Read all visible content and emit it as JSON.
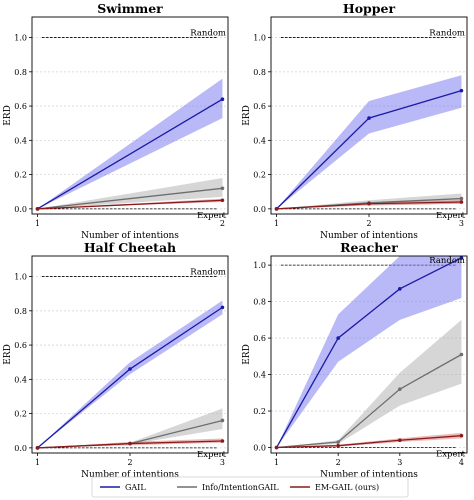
{
  "chart_data": [
    {
      "type": "line",
      "title": "Swimmer",
      "xlabel": "Number of intentions",
      "ylabel": "ERD",
      "xlim": [
        0.97,
        2.03
      ],
      "ylim": [
        -0.03,
        1.12
      ],
      "x": [
        1,
        2
      ],
      "xticks": [
        "1",
        "2"
      ],
      "yticks": [
        "0.0",
        "0.2",
        "0.4",
        "0.6",
        "0.8",
        "1.0"
      ],
      "grid": "y",
      "reference_lines": [
        {
          "label": "Random",
          "y": 1.0
        },
        {
          "label": "Expert",
          "y": 0.0
        }
      ],
      "series": [
        {
          "key": "gail",
          "values": [
            0.0,
            0.64
          ],
          "lower": [
            0.0,
            0.53
          ],
          "upper": [
            0.0,
            0.76
          ]
        },
        {
          "key": "info",
          "values": [
            0.0,
            0.12
          ],
          "lower": [
            0.0,
            0.07
          ],
          "upper": [
            0.0,
            0.18
          ]
        },
        {
          "key": "em",
          "values": [
            0.0,
            0.05
          ],
          "lower": [
            0.0,
            0.04
          ],
          "upper": [
            0.0,
            0.06
          ]
        }
      ]
    },
    {
      "type": "line",
      "title": "Hopper",
      "xlabel": "Number of intentions",
      "ylabel": "ERD",
      "xlim": [
        0.94,
        3.06
      ],
      "ylim": [
        -0.03,
        1.12
      ],
      "x": [
        1,
        2,
        3
      ],
      "xticks": [
        "1",
        "2",
        "3"
      ],
      "yticks": [
        "0.0",
        "0.2",
        "0.4",
        "0.6",
        "0.8",
        "1.0"
      ],
      "grid": "y",
      "reference_lines": [
        {
          "label": "Random",
          "y": 1.0
        },
        {
          "label": "Expert",
          "y": 0.0
        }
      ],
      "series": [
        {
          "key": "gail",
          "values": [
            0.0,
            0.53,
            0.69
          ],
          "lower": [
            0.0,
            0.44,
            0.59
          ],
          "upper": [
            0.0,
            0.63,
            0.78
          ]
        },
        {
          "key": "info",
          "values": [
            0.0,
            0.035,
            0.06
          ],
          "lower": [
            0.0,
            0.02,
            0.03
          ],
          "upper": [
            0.0,
            0.05,
            0.09
          ]
        },
        {
          "key": "em",
          "values": [
            0.0,
            0.03,
            0.04
          ],
          "lower": [
            0.0,
            0.02,
            0.03
          ],
          "upper": [
            0.0,
            0.04,
            0.05
          ]
        }
      ]
    },
    {
      "type": "line",
      "title": "Half Cheetah",
      "xlabel": "Number of intentions",
      "ylabel": "ERD",
      "xlim": [
        0.94,
        3.06
      ],
      "ylim": [
        -0.03,
        1.12
      ],
      "x": [
        1,
        2,
        3
      ],
      "xticks": [
        "1",
        "2",
        "3"
      ],
      "yticks": [
        "0.0",
        "0.2",
        "0.4",
        "0.6",
        "0.8",
        "1.0"
      ],
      "grid": "y",
      "reference_lines": [
        {
          "label": "Random",
          "y": 1.0
        },
        {
          "label": "Expert",
          "y": 0.0
        }
      ],
      "series": [
        {
          "key": "gail",
          "values": [
            0.0,
            0.46,
            0.82
          ],
          "lower": [
            0.0,
            0.43,
            0.78
          ],
          "upper": [
            0.0,
            0.5,
            0.86
          ]
        },
        {
          "key": "info",
          "values": [
            0.0,
            0.025,
            0.16
          ],
          "lower": [
            0.0,
            0.02,
            0.11
          ],
          "upper": [
            0.0,
            0.03,
            0.23
          ]
        },
        {
          "key": "em",
          "values": [
            0.0,
            0.025,
            0.04
          ],
          "lower": [
            0.0,
            0.015,
            0.03
          ],
          "upper": [
            0.0,
            0.035,
            0.055
          ]
        }
      ]
    },
    {
      "type": "line",
      "title": "Reacher",
      "xlabel": "Number of intentions",
      "ylabel": "ERD",
      "xlim": [
        0.91,
        4.09
      ],
      "ylim": [
        -0.03,
        1.05
      ],
      "x": [
        1,
        2,
        3,
        4
      ],
      "xticks": [
        "1",
        "2",
        "3",
        "4"
      ],
      "yticks": [
        "0.0",
        "0.2",
        "0.4",
        "0.6",
        "0.8",
        "1.0"
      ],
      "grid": "y",
      "reference_lines": [
        {
          "label": "Random",
          "y": 1.0
        },
        {
          "label": "Expert",
          "y": 0.0
        }
      ],
      "series": [
        {
          "key": "gail",
          "values": [
            0.0,
            0.6,
            0.87,
            1.04
          ],
          "lower": [
            0.0,
            0.47,
            0.7,
            0.82
          ],
          "upper": [
            0.0,
            0.73,
            1.05,
            1.3
          ]
        },
        {
          "key": "info",
          "values": [
            0.0,
            0.03,
            0.32,
            0.51
          ],
          "lower": [
            0.0,
            0.02,
            0.23,
            0.35
          ],
          "upper": [
            0.0,
            0.04,
            0.41,
            0.7
          ]
        },
        {
          "key": "em",
          "values": [
            0.0,
            0.01,
            0.04,
            0.065
          ],
          "lower": [
            0.0,
            0.005,
            0.03,
            0.05
          ],
          "upper": [
            0.0,
            0.015,
            0.05,
            0.08
          ]
        }
      ]
    }
  ],
  "legend": {
    "position": "bottom",
    "entries": [
      {
        "key": "gail",
        "label": "GAIL"
      },
      {
        "key": "info",
        "label": "Info/IntentionGAIL"
      },
      {
        "key": "em",
        "label": "EM-GAIL (ours)"
      }
    ]
  },
  "colors": {
    "gail_line": "#1a1aa6",
    "gail_band": "#8080f0",
    "info_line": "#6e6e6e",
    "info_band": "#b4b4b4",
    "em_line": "#8c1a1a",
    "em_band": "#d98080"
  }
}
